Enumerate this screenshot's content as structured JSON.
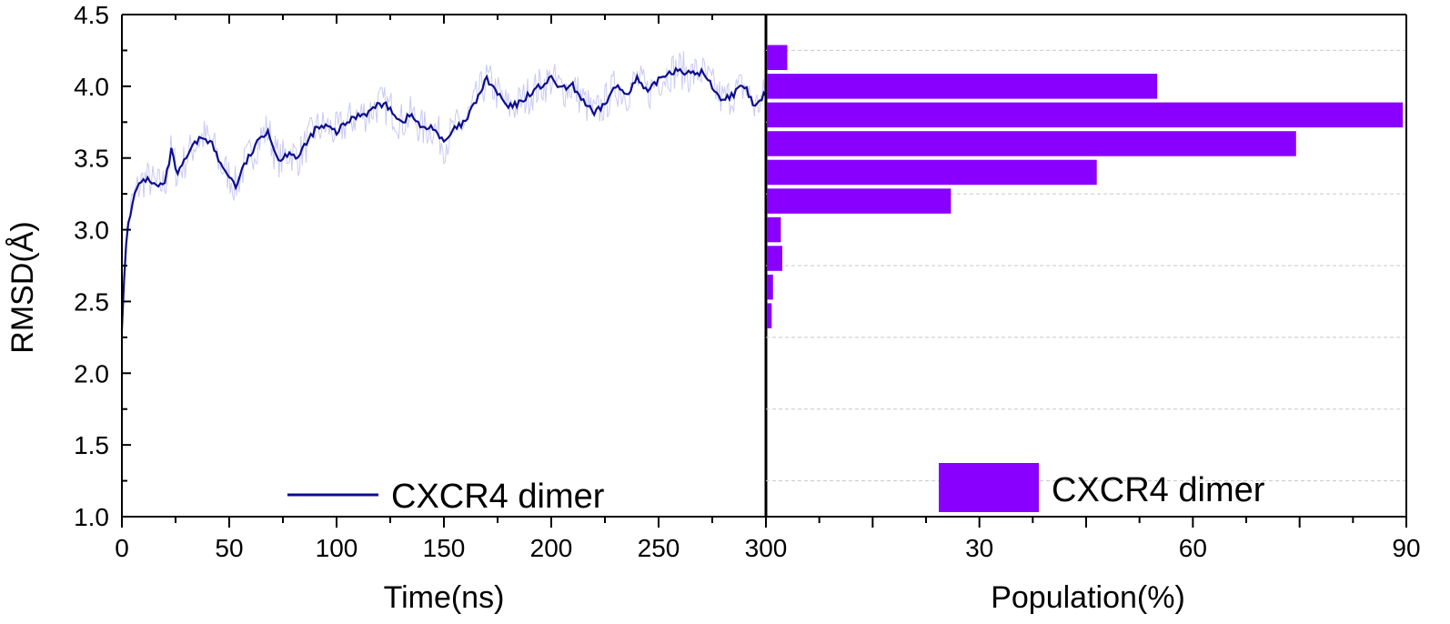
{
  "colors": {
    "line": "#0d0d8f",
    "noise": "#c9c9f2",
    "bar": "#8a00ff",
    "axis": "#000000",
    "grid": "#c8c8c8"
  },
  "chart_data": [
    {
      "type": "line",
      "xlabel": "Time(ns)",
      "ylabel": "RMSD(Å)",
      "xlim": [
        0,
        300
      ],
      "ylim": [
        1.0,
        4.5
      ],
      "xticks": [
        "0",
        "50",
        "100",
        "150",
        "200",
        "250",
        "300"
      ],
      "xtick_values": [
        0,
        50,
        100,
        150,
        200,
        250,
        300
      ],
      "yticks": [
        "1.0",
        "1.5",
        "2.0",
        "2.5",
        "3.0",
        "3.5",
        "4.0",
        "4.5"
      ],
      "ytick_values": [
        1.0,
        1.5,
        2.0,
        2.5,
        3.0,
        3.5,
        4.0,
        4.5
      ],
      "legend": {
        "label": "CXCR4 dimer",
        "position": "bottom-center"
      },
      "series": [
        {
          "name": "CXCR4 dimer",
          "x": [
            0,
            1,
            2,
            3,
            5,
            7,
            10,
            13,
            16,
            20,
            23,
            26,
            30,
            34,
            38,
            42,
            46,
            50,
            53,
            57,
            61,
            65,
            68,
            71,
            74,
            78,
            82,
            86,
            90,
            95,
            100,
            105,
            110,
            115,
            120,
            125,
            130,
            135,
            140,
            145,
            150,
            155,
            160,
            165,
            170,
            175,
            180,
            185,
            190,
            195,
            200,
            205,
            210,
            215,
            220,
            225,
            230,
            235,
            240,
            245,
            250,
            255,
            260,
            265,
            270,
            275,
            280,
            285,
            290,
            295,
            300
          ],
          "y": [
            2.3,
            2.65,
            2.9,
            3.05,
            3.2,
            3.28,
            3.35,
            3.35,
            3.3,
            3.32,
            3.55,
            3.38,
            3.5,
            3.6,
            3.65,
            3.6,
            3.45,
            3.38,
            3.3,
            3.45,
            3.55,
            3.65,
            3.7,
            3.55,
            3.48,
            3.55,
            3.5,
            3.6,
            3.7,
            3.72,
            3.68,
            3.75,
            3.8,
            3.82,
            3.88,
            3.85,
            3.75,
            3.8,
            3.7,
            3.72,
            3.6,
            3.7,
            3.75,
            3.9,
            4.05,
            3.95,
            3.85,
            3.88,
            3.95,
            4.0,
            4.05,
            3.98,
            4.0,
            3.9,
            3.8,
            3.88,
            4.0,
            3.95,
            4.05,
            3.95,
            4.05,
            4.1,
            4.12,
            4.08,
            4.1,
            4.0,
            3.9,
            3.95,
            4.0,
            3.85,
            3.95
          ]
        }
      ]
    },
    {
      "type": "bar",
      "orientation": "horizontal",
      "xlabel": "Population(%)",
      "xlim": [
        0,
        90
      ],
      "xticks": [
        "30",
        "60",
        "90"
      ],
      "xtick_values": [
        30,
        60,
        90
      ],
      "ylim": [
        1.0,
        4.5
      ],
      "grid": "horizontal-dashed",
      "legend": {
        "label": "CXCR4 dimer",
        "position": "bottom-right"
      },
      "series": [
        {
          "name": "CXCR4 dimer",
          "bins": [
            2.4,
            2.6,
            2.8,
            3.0,
            3.2,
            3.4,
            3.6,
            3.8,
            4.0,
            4.2
          ],
          "values": [
            0.8,
            1.0,
            2.3,
            2.1,
            26,
            46.5,
            74.5,
            89.5,
            55,
            3
          ]
        }
      ]
    }
  ]
}
